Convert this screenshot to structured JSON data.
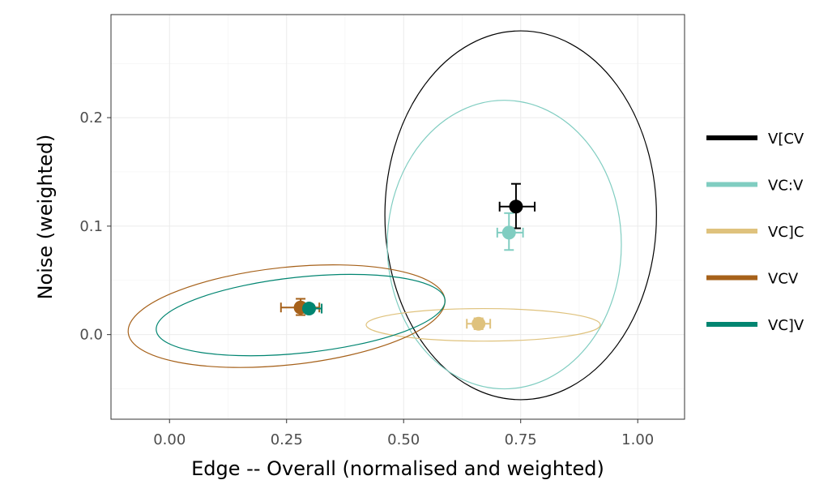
{
  "chart_data": {
    "type": "scatter",
    "title": "",
    "xlabel": "Edge -- Overall (normalised and weighted)",
    "ylabel": "Noise (weighted)",
    "xlim": [
      -0.125,
      1.1
    ],
    "ylim": [
      -0.078,
      0.295
    ],
    "xticks": [
      0.0,
      0.25,
      0.5,
      0.75,
      1.0
    ],
    "xtick_labels": [
      "0.00",
      "0.25",
      "0.50",
      "0.75",
      "1.00"
    ],
    "yticks": [
      0.0,
      0.1,
      0.2
    ],
    "ytick_labels": [
      "0.0",
      "0.1",
      "0.2"
    ],
    "grid": true,
    "legend_position": "right",
    "series": [
      {
        "name": "V[CV",
        "color": "#000000",
        "point": {
          "x": 0.74,
          "y": 0.118
        },
        "xerr": [
          0.705,
          0.78
        ],
        "yerr": [
          0.098,
          0.139
        ],
        "ellipse": {
          "cx": 0.75,
          "cy": 0.11,
          "rx": 0.29,
          "ry": 0.17,
          "angle": 0
        }
      },
      {
        "name": "VC:V",
        "color": "#80cdc1",
        "point": {
          "x": 0.725,
          "y": 0.094
        },
        "xerr": [
          0.7,
          0.755
        ],
        "yerr": [
          0.078,
          0.112
        ],
        "ellipse": {
          "cx": 0.715,
          "cy": 0.083,
          "rx": 0.25,
          "ry": 0.133,
          "angle": 0
        }
      },
      {
        "name": "VC]C",
        "color": "#dfc27d",
        "point": {
          "x": 0.66,
          "y": 0.01
        },
        "xerr": [
          0.635,
          0.685
        ],
        "yerr": [
          0.005,
          0.015
        ],
        "ellipse": {
          "cx": 0.67,
          "cy": 0.009,
          "rx": 0.25,
          "ry": 0.015,
          "angle": 0
        }
      },
      {
        "name": "VCV",
        "color": "#a6611a",
        "point": {
          "x": 0.28,
          "y": 0.025
        },
        "xerr": [
          0.238,
          0.32
        ],
        "yerr": [
          0.018,
          0.033
        ],
        "ellipse": {
          "cx": 0.25,
          "cy": 0.017,
          "rx": 0.34,
          "ry": 0.045,
          "angle": 6
        }
      },
      {
        "name": "VC]V",
        "color": "#018571",
        "point": {
          "x": 0.298,
          "y": 0.024
        },
        "xerr": [
          0.275,
          0.325
        ],
        "yerr": [
          0.02,
          0.028
        ],
        "ellipse": {
          "cx": 0.28,
          "cy": 0.018,
          "rx": 0.31,
          "ry": 0.035,
          "angle": 6
        }
      }
    ]
  }
}
